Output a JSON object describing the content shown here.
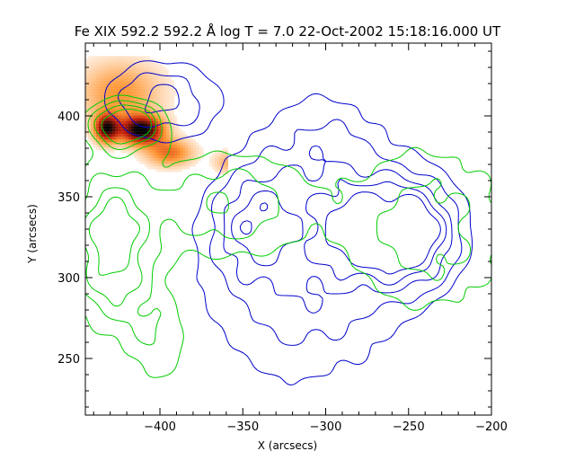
{
  "chart_data": {
    "type": "contour",
    "title": "Fe XIX 592.2  592.2 Å log T = 7.0 22-Oct-2002 15:18:16.000 UT",
    "xlabel": "X (arcsecs)",
    "ylabel": "Y (arcsecs)",
    "xlim": [
      -445,
      -200
    ],
    "ylim": [
      215,
      445
    ],
    "xticks": [
      -400,
      -350,
      -300,
      -250,
      -200
    ],
    "yticks": [
      250,
      300,
      350,
      400
    ],
    "grid": false,
    "background_image": {
      "description_colormap": "orange-red-black intensity",
      "region_x": [
        -445,
        -360
      ],
      "region_y": [
        365,
        437
      ],
      "peaks": [
        {
          "x": -412,
          "y": 392,
          "amp": 1.0,
          "sx": 9,
          "sy": 6
        },
        {
          "x": -433,
          "y": 393,
          "amp": 0.85,
          "sx": 5,
          "sy": 6
        },
        {
          "x": -395,
          "y": 378,
          "amp": 0.45,
          "sx": 10,
          "sy": 6
        },
        {
          "x": -425,
          "y": 415,
          "amp": 0.35,
          "sx": 18,
          "sy": 14
        },
        {
          "x": -360,
          "y": 372,
          "amp": 0.25,
          "sx": 6,
          "sy": 5
        }
      ]
    },
    "series": [
      {
        "color": "#0000cc",
        "blobs": [
          {
            "x": -250,
            "y": 328,
            "amp": 1.0,
            "sx": 22,
            "sy": 24
          },
          {
            "x": -315,
            "y": 300,
            "amp": 0.55,
            "sx": 45,
            "sy": 50
          },
          {
            "x": -345,
            "y": 335,
            "amp": 0.45,
            "sx": 18,
            "sy": 22
          },
          {
            "x": -285,
            "y": 330,
            "amp": 0.45,
            "sx": 14,
            "sy": 16
          },
          {
            "x": -400,
            "y": 410,
            "amp": 0.6,
            "sx": 25,
            "sy": 18
          },
          {
            "x": -300,
            "y": 380,
            "amp": 0.35,
            "sx": 30,
            "sy": 30
          }
        ],
        "levels": [
          0.25,
          0.4,
          0.55,
          0.7,
          0.85
        ]
      },
      {
        "color": "#00cc00",
        "blobs": [
          {
            "x": -430,
            "y": 320,
            "amp": 0.8,
            "sx": 18,
            "sy": 35
          },
          {
            "x": -420,
            "y": 395,
            "amp": 1.0,
            "sx": 15,
            "sy": 10
          },
          {
            "x": -360,
            "y": 345,
            "amp": 0.55,
            "sx": 35,
            "sy": 25
          },
          {
            "x": -240,
            "y": 330,
            "amp": 0.5,
            "sx": 40,
            "sy": 40
          },
          {
            "x": -400,
            "y": 260,
            "amp": 0.35,
            "sx": 15,
            "sy": 25
          }
        ],
        "levels": [
          0.25,
          0.4,
          0.55,
          0.7
        ]
      }
    ]
  }
}
